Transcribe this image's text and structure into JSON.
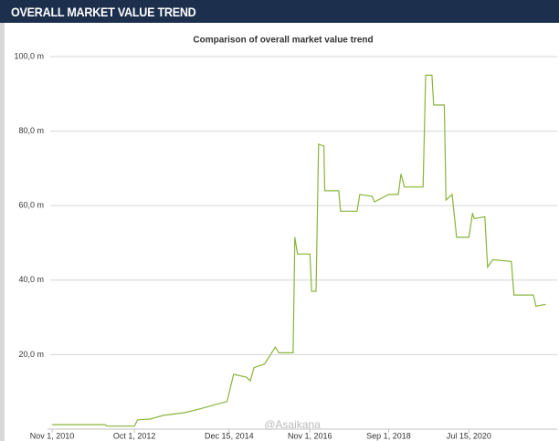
{
  "header": {
    "title": "OVERALL MARKET VALUE TREND"
  },
  "chart_data": {
    "type": "line",
    "title": "Comparison of overall market value trend",
    "watermark": "@Asaikana",
    "x": [
      "2010-11-01",
      "2012-01-26",
      "2012-02-11",
      "2012-10-01",
      "2012-10-28",
      "2013-02-11",
      "2013-06-06",
      "2013-11-30",
      "2014-04-29",
      "2014-08-22",
      "2014-11-28",
      "2015-01-22",
      "2015-05-07",
      "2015-06-14",
      "2015-07-14",
      "2015-10-13",
      "2016-01-12",
      "2016-02-11",
      "2016-06-11",
      "2016-06-26",
      "2016-07-18",
      "2016-11-01",
      "2016-11-16",
      "2016-12-23",
      "2017-01-14",
      "2017-02-28",
      "2017-03-07",
      "2017-07-04",
      "2017-07-19",
      "2017-12-07",
      "2017-12-30",
      "2018-04-13",
      "2018-05-05",
      "2018-09-01",
      "2018-11-23",
      "2018-12-15",
      "2019-01-14",
      "2019-06-21",
      "2019-07-13",
      "2019-09-04",
      "2019-09-19",
      "2019-12-18",
      "2020-01-02",
      "2020-02-23",
      "2020-04-01",
      "2020-07-15",
      "2020-08-14",
      "2020-08-29",
      "2020-11-27",
      "2020-12-20",
      "2021-02-03",
      "2021-07-10",
      "2021-08-02",
      "2022-01-14",
      "2022-02-05",
      "2022-04-29"
    ],
    "series": [
      {
        "name": "Market value",
        "color": "#8ab43c",
        "values": [
          1.2,
          1.2,
          0.8,
          0.8,
          2.5,
          2.7,
          3.7,
          4.4,
          5.6,
          6.6,
          7.4,
          14.7,
          14.0,
          13.0,
          16.5,
          17.5,
          22,
          20.5,
          20.5,
          51.5,
          47,
          47,
          37,
          37,
          76.5,
          76,
          64,
          64,
          58.5,
          58.5,
          63,
          62.5,
          61,
          63,
          63,
          68.5,
          65,
          65,
          95,
          95,
          87,
          87,
          61.5,
          63,
          51.5,
          51.5,
          58,
          56.5,
          57,
          43.5,
          45.5,
          45,
          36,
          36,
          33,
          33.5
        ]
      }
    ],
    "xlim": [
      "2010-09-23",
      "2022-08-04"
    ],
    "xticks": [
      {
        "value": "2010-11-01",
        "label": "Nov 1, 2010"
      },
      {
        "value": "2012-10-01",
        "label": "Oct 1, 2012"
      },
      {
        "value": "2014-12-15",
        "label": "Dec 15, 2014"
      },
      {
        "value": "2016-11-01",
        "label": "Nov 1, 2016"
      },
      {
        "value": "2018-09-01",
        "label": "Sep 1, 2018"
      },
      {
        "value": "2020-07-15",
        "label": "Jul 15, 2020"
      }
    ],
    "ylim": [
      0,
      100
    ],
    "yticks": [
      {
        "value": 20,
        "label": "20,0 m"
      },
      {
        "value": 40,
        "label": "40,0 m"
      },
      {
        "value": 60,
        "label": "60,0 m"
      },
      {
        "value": 80,
        "label": "80,0 m"
      },
      {
        "value": 100,
        "label": "100,0 m"
      }
    ],
    "grid": true
  }
}
